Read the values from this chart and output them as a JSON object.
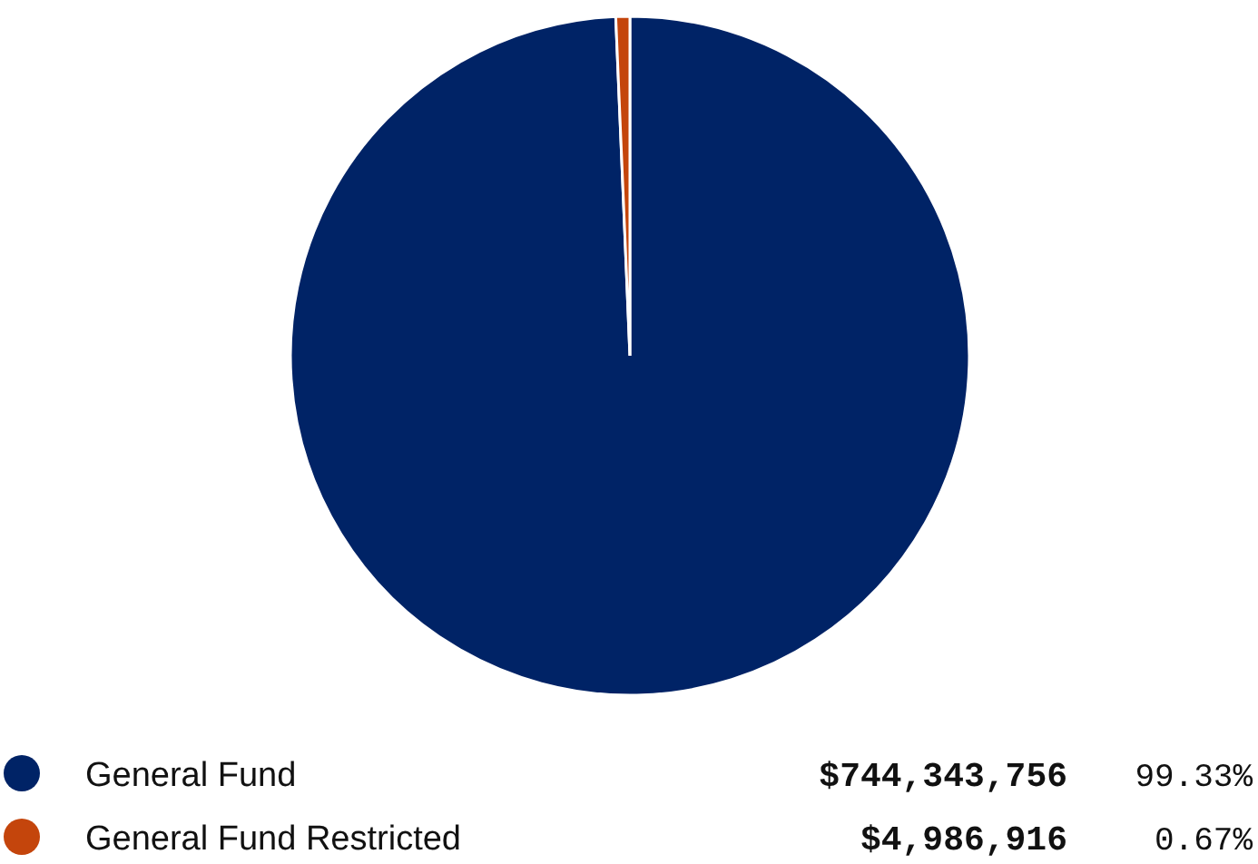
{
  "chart_data": {
    "type": "pie",
    "categories": [
      "General Fund",
      "General Fund Restricted"
    ],
    "values": [
      744343756,
      4986916
    ],
    "colors": [
      "#002366",
      "#c4450c"
    ],
    "value_labels": [
      "$744,343,756",
      "$4,986,916"
    ],
    "annotations": [
      "99.33%",
      "0.67%"
    ],
    "legend": "bottom"
  }
}
